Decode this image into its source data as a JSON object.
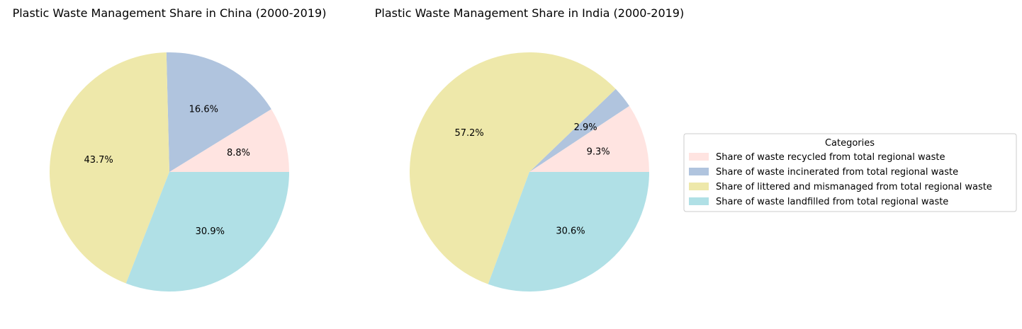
{
  "chart_data": [
    {
      "type": "pie",
      "title": "Plastic Waste Management Share in China (2000-2019)",
      "categories": [
        "Share of waste recycled from total regional waste",
        "Share of waste incinerated from total regional waste",
        "Share of littered and mismanaged from total regional waste",
        "Share of waste landfilled from total regional waste"
      ],
      "values": [
        8.8,
        16.6,
        43.7,
        30.9
      ],
      "labels": [
        "8.8%",
        "16.6%",
        "43.7%",
        "30.9%"
      ],
      "start_angle_deg": 0,
      "direction": "counterclockwise"
    },
    {
      "type": "pie",
      "title": "Plastic Waste Management Share in India (2000-2019)",
      "categories": [
        "Share of waste recycled from total regional waste",
        "Share of waste incinerated from total regional waste",
        "Share of littered and mismanaged from total regional waste",
        "Share of waste landfilled from total regional waste"
      ],
      "values": [
        9.3,
        2.9,
        57.2,
        30.6
      ],
      "labels": [
        "9.3%",
        "2.9%",
        "57.2%",
        "30.6%"
      ],
      "start_angle_deg": 0,
      "direction": "counterclockwise"
    }
  ],
  "legend": {
    "title": "Categories",
    "placement": "right",
    "entries": [
      {
        "label": "Share of waste recycled from total regional waste",
        "color": "#ffe4e1"
      },
      {
        "label": "Share of waste incinerated from total regional waste",
        "color": "#b0c4de"
      },
      {
        "label": "Share of littered and mismanaged from total regional waste",
        "color": "#eee8aa"
      },
      {
        "label": "Share of waste landfilled from total regional waste",
        "color": "#b0e0e6"
      }
    ]
  }
}
